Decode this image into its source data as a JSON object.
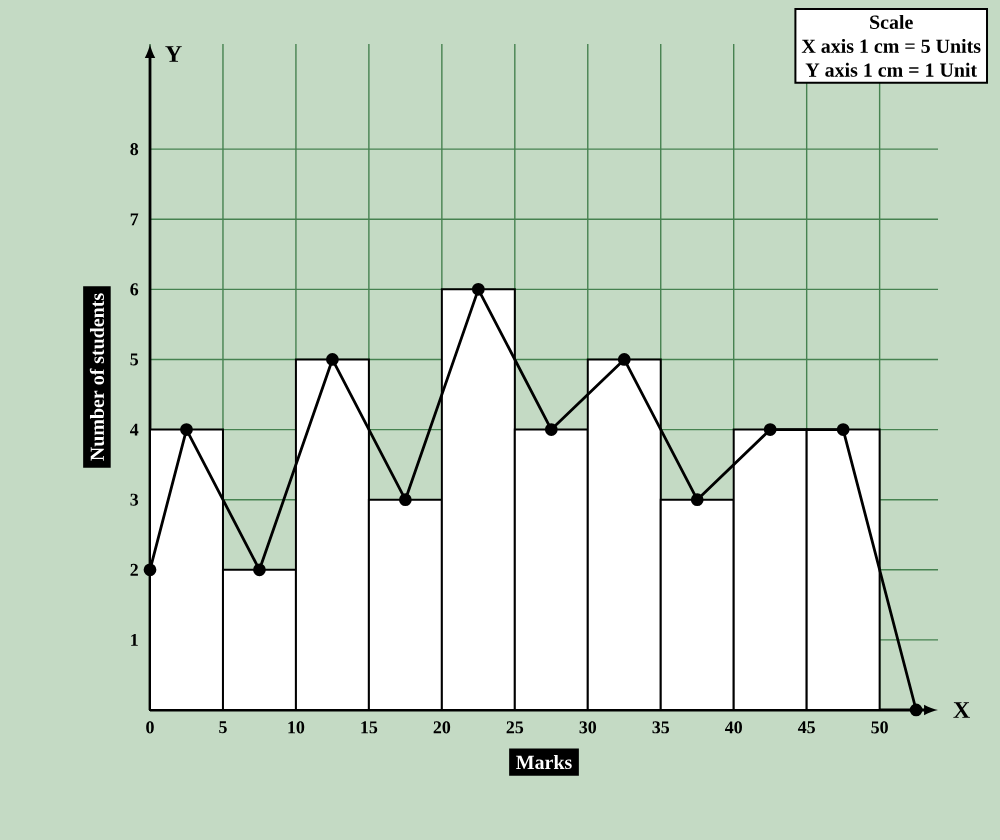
{
  "chart_data": {
    "type": "histogram",
    "xlabel": "Marks",
    "ylabel": "Number of students",
    "annotations": [
      "X",
      "Y",
      "Scale",
      "X axis 1 cm = 5 Units",
      "Y axis 1 cm = 1 Unit"
    ],
    "series": [
      {
        "color": "#ffffff",
        "bins": [
          0,
          5,
          10,
          15,
          20,
          25,
          30,
          35,
          40,
          45,
          50
        ],
        "values": [
          4,
          2,
          5,
          3,
          6,
          4,
          5,
          3,
          4,
          4
        ]
      },
      {
        "type": "line",
        "color": "#000000",
        "x": [
          0,
          2.5,
          7.5,
          12.5,
          17.5,
          22.5,
          27.5,
          32.5,
          37.5,
          42.5,
          47.5,
          52.5
        ],
        "values": [
          2,
          4,
          2,
          5,
          3,
          6,
          4,
          5,
          3,
          4,
          4,
          0
        ]
      }
    ],
    "xlim": [
      0,
      54
    ],
    "ylim": [
      0,
      9.5
    ],
    "xticks": [
      0,
      5,
      10,
      15,
      20,
      25,
      30,
      35,
      40,
      45,
      50
    ],
    "yticks": [
      1,
      2,
      3,
      4,
      5,
      6,
      7,
      8
    ],
    "grid": true,
    "marker": "circle",
    "line_style": "solid"
  }
}
